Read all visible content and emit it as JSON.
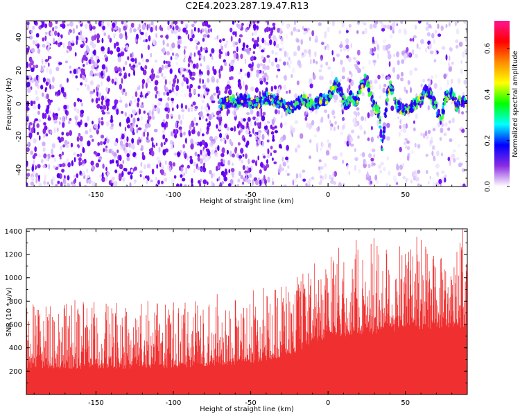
{
  "title": "C2E4.2023.287.19.47.R13",
  "chart_data": [
    {
      "type": "heatmap",
      "xlabel": "Height of straight line (km)",
      "ylabel": "Frequency (Hz)",
      "xlim": [
        -195,
        90
      ],
      "ylim": [
        -50,
        50
      ],
      "xticks": [
        -150,
        -100,
        -50,
        0,
        50
      ],
      "yticks": [
        -40,
        -20,
        0,
        20,
        40
      ],
      "colorbar": {
        "label": "Normalized spectral amplitude",
        "range": [
          0,
          0.72
        ],
        "ticks": [
          "0.0",
          "0.2",
          "0.4",
          "0.6"
        ],
        "tick_values": [
          0,
          0.2,
          0.4,
          0.6
        ],
        "colormap": [
          "#ffffff",
          "#8a2be2",
          "#0000ff",
          "#00ffff",
          "#00ff00",
          "#ffff00",
          "#ff8c00",
          "#ff0000",
          "#ff1493"
        ]
      },
      "trace_x": [
        -70,
        -55,
        -45,
        -40,
        -30,
        -25,
        -20,
        -15,
        -10,
        -5,
        0,
        5,
        8,
        12,
        15,
        18,
        22,
        25,
        28,
        30,
        33,
        35,
        38,
        40,
        45,
        50,
        55,
        60,
        63,
        66,
        70,
        73,
        76,
        80,
        83,
        86,
        90
      ],
      "trace_y": [
        0,
        2,
        0,
        4,
        0,
        -3,
        0,
        2,
        -1,
        2,
        3,
        12,
        8,
        -2,
        5,
        0,
        12,
        15,
        3,
        -2,
        -5,
        -28,
        3,
        12,
        -2,
        -3,
        -1,
        2,
        8,
        6,
        -3,
        -10,
        4,
        6,
        -1,
        2,
        0
      ],
      "noise_region": "dense noise for x < -30, sparse speckle for x >= -30"
    },
    {
      "type": "area",
      "xlabel": "Height of straight line (km)",
      "ylabel": "SNR (10 * v/v)",
      "xlim": [
        -195,
        90
      ],
      "ylim": [
        0,
        1420
      ],
      "xticks": [
        -150,
        -100,
        -50,
        0,
        50
      ],
      "yticks": [
        200,
        400,
        600,
        800,
        1000,
        1200,
        1400
      ],
      "color": "#f03030",
      "envelope_x": [
        -195,
        -150,
        -100,
        -50,
        -25,
        -5,
        0,
        20,
        40,
        60,
        90
      ],
      "envelope_baseline": [
        240,
        230,
        240,
        280,
        350,
        480,
        520,
        520,
        560,
        580,
        600
      ],
      "envelope_peak": [
        800,
        780,
        800,
        900,
        1000,
        1150,
        1200,
        1380,
        1360,
        1380,
        1420
      ]
    }
  ]
}
